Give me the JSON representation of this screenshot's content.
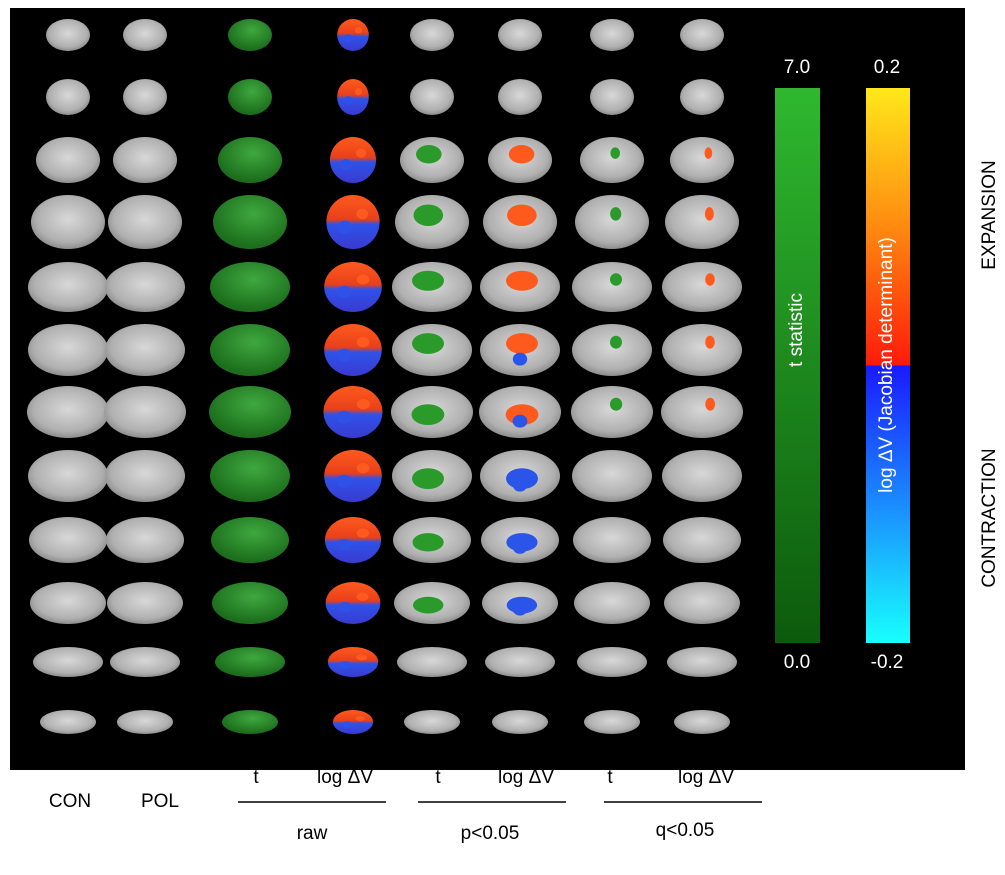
{
  "columns": [
    "CON",
    "POL",
    "t",
    "log ΔV",
    "t",
    "log ΔV",
    "t",
    "log ΔV"
  ],
  "groups": [
    {
      "label": "raw"
    },
    {
      "label": "p<0.05"
    },
    {
      "label": "q<0.05"
    }
  ],
  "colorbars": [
    {
      "max": "7.0",
      "min": "0.0",
      "label": "t statistic"
    },
    {
      "max": "0.2",
      "min": "-0.2",
      "label": "log ΔV (Jacobian determinant)"
    }
  ],
  "arrows": {
    "up": "EXPANSION",
    "down": "CONTRACTION"
  }
}
